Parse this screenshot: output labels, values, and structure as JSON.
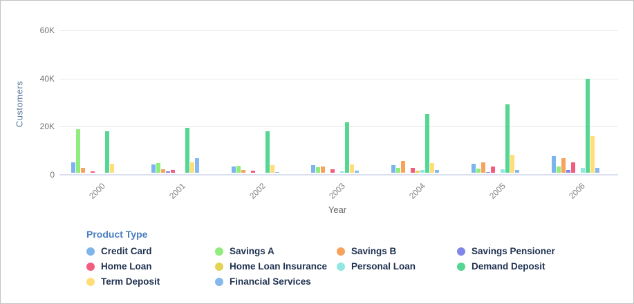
{
  "chart_data": {
    "type": "bar",
    "title": "",
    "xlabel": "Year",
    "ylabel": "Customers",
    "categories": [
      "2000",
      "2001",
      "2002",
      "2003",
      "2004",
      "2005",
      "2006"
    ],
    "yticks": [
      "0",
      "20K",
      "40K",
      "60K"
    ],
    "ylim": [
      0,
      60000
    ],
    "grid": true,
    "legend_position": "bottom",
    "legend_title": "Product Type",
    "series": [
      {
        "name": "Credit Card",
        "color": "#7cb5ec",
        "values": [
          4200,
          3500,
          2500,
          3200,
          3200,
          3650,
          7000
        ]
      },
      {
        "name": "Savings A",
        "color": "#90ed7d",
        "values": [
          18000,
          3900,
          3000,
          2300,
          1900,
          1700,
          2500
        ]
      },
      {
        "name": "Savings B",
        "color": "#f7a35c",
        "values": [
          1900,
          1400,
          1100,
          2500,
          4900,
          4400,
          6100
        ]
      },
      {
        "name": "Savings Pensioner",
        "color": "#8085e9",
        "values": [
          0,
          700,
          0,
          0,
          0,
          400,
          1250
        ]
      },
      {
        "name": "Home Loan",
        "color": "#f15c80",
        "values": [
          500,
          1200,
          800,
          1400,
          2000,
          2500,
          4300
        ]
      },
      {
        "name": "Home Loan Insurance",
        "color": "#e4d354",
        "values": [
          0,
          0,
          0,
          0,
          750,
          0,
          0
        ]
      },
      {
        "name": "Personal Loan",
        "color": "#91e8e1",
        "values": [
          0,
          0,
          0,
          600,
          1150,
          1500,
          2000
        ]
      },
      {
        "name": "Demand Deposit",
        "color": "#55d693",
        "values": [
          17200,
          18700,
          17100,
          20900,
          24500,
          28400,
          39200
        ]
      },
      {
        "name": "Term Deposit",
        "color": "#ffdd79",
        "values": [
          3700,
          4300,
          3200,
          3500,
          4100,
          7500,
          15300
        ]
      },
      {
        "name": "Financial Services",
        "color": "#85b9ee",
        "values": [
          0,
          6000,
          400,
          800,
          1050,
          1250,
          2000
        ]
      }
    ]
  }
}
